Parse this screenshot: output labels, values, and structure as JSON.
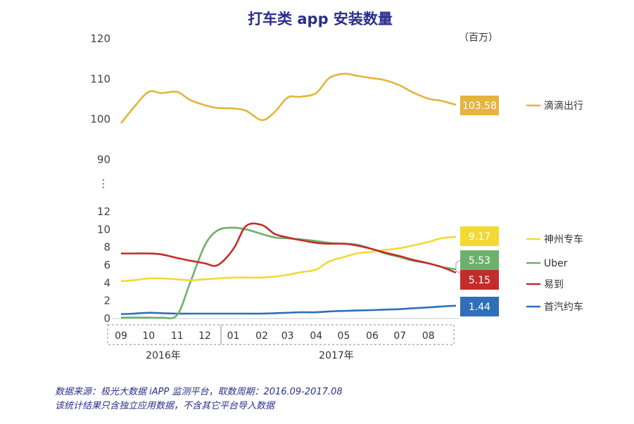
{
  "title": "打车类 app 安装数量",
  "unit": "（百万）",
  "colors": {
    "didi": "#e4b43c",
    "shenzhou": "#f2d933",
    "uber": "#6db06c",
    "yidao": "#c62b2b",
    "shouqi": "#2f6fb7",
    "title": "#2a2f8c"
  },
  "chart_data": {
    "type": "line",
    "x": [
      "2016-09-01",
      "2016-09-15",
      "2016-10-01",
      "2016-10-15",
      "2016-11-01",
      "2016-11-15",
      "2016-12-01",
      "2016-12-15",
      "2017-01-01",
      "2017-01-15",
      "2017-02-01",
      "2017-02-15",
      "2017-03-01",
      "2017-03-15",
      "2017-04-01",
      "2017-04-15",
      "2017-05-01",
      "2017-05-15",
      "2017-06-01",
      "2017-06-15",
      "2017-07-01",
      "2017-07-15",
      "2017-08-01",
      "2017-08-15",
      "2017-08-31"
    ],
    "x_tick_labels": [
      "09",
      "10",
      "11",
      "12",
      "01",
      "02",
      "03",
      "04",
      "05",
      "06",
      "07",
      "08"
    ],
    "year_labels": [
      "2016年",
      "2017年"
    ],
    "upper_axis": {
      "ticks": [
        "120",
        "110",
        "100",
        "90"
      ],
      "ylim": [
        90,
        120
      ]
    },
    "break_symbol": "⋮",
    "lower_axis": {
      "ticks": [
        "12",
        "10",
        "8",
        "6",
        "4",
        "2",
        "0"
      ],
      "ylim": [
        0,
        12
      ]
    },
    "series": [
      {
        "name": "滴滴出行",
        "key": "didi",
        "axis": "upper",
        "end_label": "103.58",
        "values": [
          99,
          103,
          106.8,
          106.5,
          106.8,
          104.8,
          103.5,
          102.8,
          102.7,
          102.1,
          99.8,
          101.8,
          105.4,
          105.6,
          106.5,
          110.2,
          111.3,
          110.8,
          110.2,
          109.7,
          108.4,
          106.7,
          105.1,
          104.6,
          103.58
        ]
      },
      {
        "name": "神州专车",
        "key": "shenzhou",
        "axis": "lower",
        "end_label": "9.17",
        "values": [
          4.2,
          4.3,
          4.5,
          4.5,
          4.4,
          4.3,
          4.4,
          4.5,
          4.6,
          4.6,
          4.6,
          4.7,
          4.9,
          5.2,
          5.5,
          6.4,
          6.9,
          7.3,
          7.5,
          7.7,
          7.9,
          8.2,
          8.6,
          9.0,
          9.17
        ]
      },
      {
        "name": "Uber",
        "key": "uber",
        "axis": "lower",
        "end_label": "5.53",
        "values": [
          0.1,
          0.1,
          0.1,
          0.1,
          0.4,
          4.0,
          8.2,
          9.9,
          10.2,
          10.0,
          9.5,
          9.1,
          9.0,
          8.9,
          8.7,
          8.5,
          8.4,
          8.3,
          7.8,
          7.3,
          6.9,
          6.5,
          6.2,
          5.8,
          5.53
        ]
      },
      {
        "name": "易到",
        "key": "yidao",
        "axis": "lower",
        "end_label": "5.15",
        "values": [
          7.3,
          7.3,
          7.3,
          7.2,
          6.8,
          6.5,
          6.2,
          6.0,
          7.8,
          10.4,
          10.5,
          9.5,
          9.1,
          8.8,
          8.5,
          8.4,
          8.4,
          8.2,
          7.8,
          7.4,
          7.0,
          6.6,
          6.2,
          5.8,
          5.15
        ]
      },
      {
        "name": "首汽约车",
        "key": "shouqi",
        "axis": "lower",
        "end_label": "1.44",
        "values": [
          0.5,
          0.55,
          0.65,
          0.6,
          0.55,
          0.55,
          0.55,
          0.55,
          0.55,
          0.55,
          0.55,
          0.6,
          0.65,
          0.7,
          0.7,
          0.8,
          0.85,
          0.9,
          0.95,
          1.0,
          1.05,
          1.15,
          1.25,
          1.35,
          1.44
        ]
      }
    ]
  },
  "source": {
    "line1": "数据来源：极光大数据 iAPP 监测平台，取数周期：2016.09-2017.08",
    "line2": "该统计结果只含独立应用数据，不含其它平台导入数据"
  }
}
